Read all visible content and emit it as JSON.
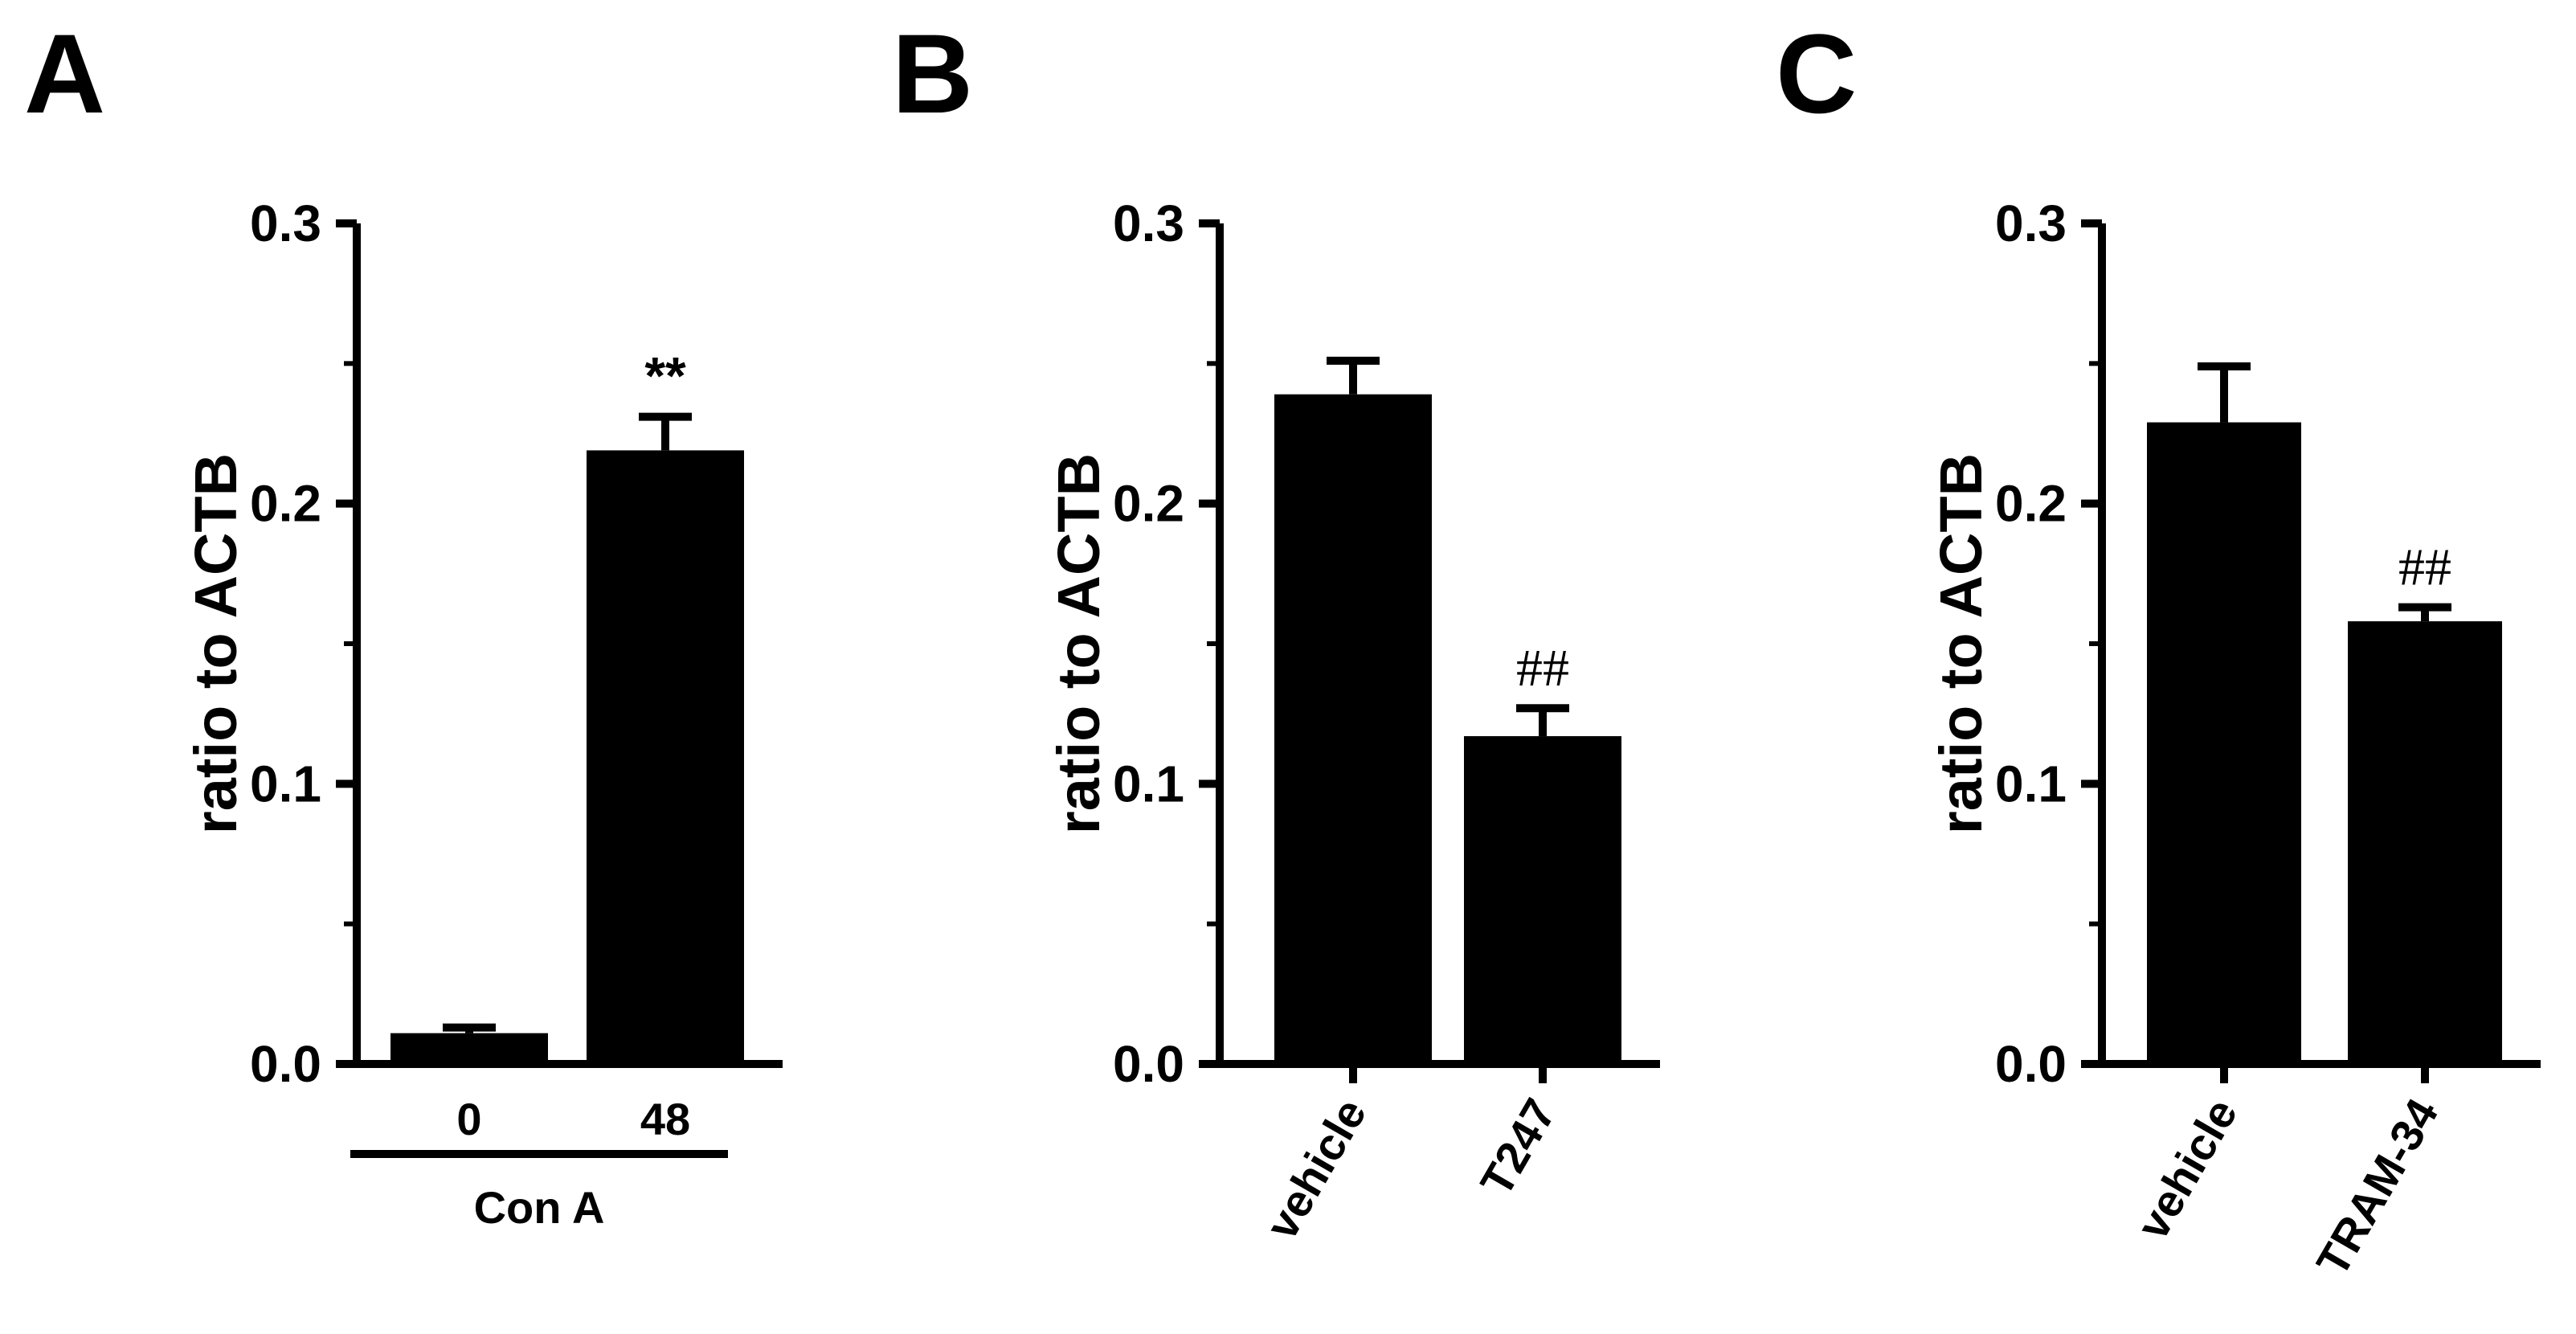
{
  "chart_data": [
    {
      "panel": "A",
      "type": "bar",
      "ylabel": "ratio to ACTB",
      "ylim": [
        0,
        0.3
      ],
      "yticks": [
        "0.0",
        "0.1",
        "0.2",
        "0.3"
      ],
      "categories": [
        "0",
        "48"
      ],
      "group_label": "Con A",
      "values": [
        0.011,
        0.219
      ],
      "errors": [
        0.002,
        0.012
      ],
      "annotations": [
        "",
        "**"
      ],
      "bar_color": "#000000"
    },
    {
      "panel": "B",
      "type": "bar",
      "ylabel": "ratio to ACTB",
      "ylim": [
        0,
        0.3
      ],
      "yticks": [
        "0.0",
        "0.1",
        "0.2",
        "0.3"
      ],
      "categories": [
        "vehicle",
        "T247"
      ],
      "values": [
        0.239,
        0.117
      ],
      "errors": [
        0.012,
        0.01
      ],
      "annotations": [
        "",
        "##"
      ],
      "bar_color": "#000000"
    },
    {
      "panel": "C",
      "type": "bar",
      "ylabel": "ratio to ACTB",
      "ylim": [
        0,
        0.3
      ],
      "yticks": [
        "0.0",
        "0.1",
        "0.2",
        "0.3"
      ],
      "categories": [
        "vehicle",
        "TRAM-34"
      ],
      "values": [
        0.229,
        0.158
      ],
      "errors": [
        0.02,
        0.005
      ],
      "annotations": [
        "",
        "##"
      ],
      "bar_color": "#000000"
    }
  ]
}
